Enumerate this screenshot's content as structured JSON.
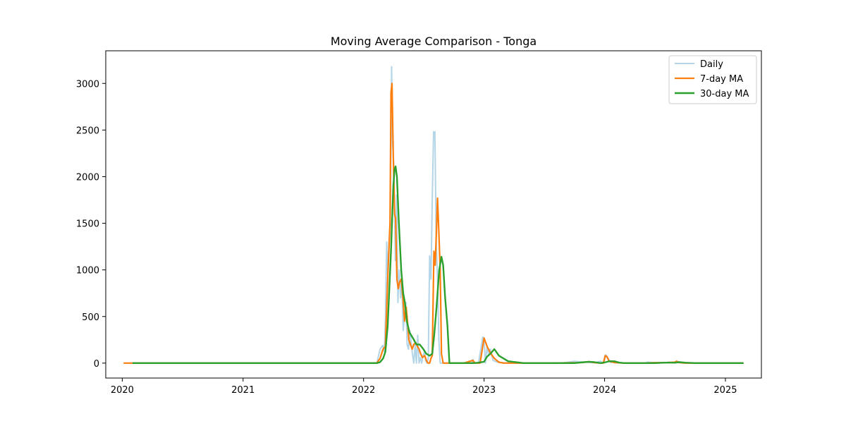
{
  "chart_data": {
    "type": "line",
    "title": "Moving Average Comparison - Tonga",
    "xlabel": "",
    "ylabel": "",
    "xlim": [
      "2019-11-12",
      "2025-04-20"
    ],
    "ylim": [
      -160,
      3350
    ],
    "x_ticks": [
      "2020",
      "2021",
      "2022",
      "2023",
      "2024",
      "2025"
    ],
    "y_ticks": [
      0,
      500,
      1000,
      1500,
      2000,
      2500,
      3000
    ],
    "grid": false,
    "legend": "top-right",
    "series": [
      {
        "name": "Daily",
        "color": "#a6cee3",
        "x": [
          "2020-01-05",
          "2021-12-20",
          "2022-02-10",
          "2022-02-20",
          "2022-02-28",
          "2022-03-05",
          "2022-03-08",
          "2022-03-12",
          "2022-03-15",
          "2022-03-20",
          "2022-03-23",
          "2022-03-27",
          "2022-03-30",
          "2022-04-03",
          "2022-04-07",
          "2022-04-11",
          "2022-04-15",
          "2022-04-19",
          "2022-04-23",
          "2022-04-27",
          "2022-05-01",
          "2022-05-05",
          "2022-05-09",
          "2022-05-13",
          "2022-05-17",
          "2022-05-21",
          "2022-05-25",
          "2022-05-29",
          "2022-06-02",
          "2022-06-06",
          "2022-06-10",
          "2022-06-14",
          "2022-06-18",
          "2022-06-22",
          "2022-06-26",
          "2022-06-30",
          "2022-07-04",
          "2022-07-08",
          "2022-07-12",
          "2022-07-16",
          "2022-07-20",
          "2022-07-24",
          "2022-07-28",
          "2022-08-01",
          "2022-08-05",
          "2022-08-09",
          "2022-08-13",
          "2022-08-17",
          "2022-08-21",
          "2022-08-25",
          "2022-08-29",
          "2022-09-02",
          "2022-09-08",
          "2022-09-14",
          "2022-09-20",
          "2022-09-30",
          "2022-10-10",
          "2022-11-15",
          "2022-11-25",
          "2022-11-28",
          "2022-12-01",
          "2022-12-15",
          "2022-12-28",
          "2023-01-01",
          "2023-01-05",
          "2023-01-10",
          "2023-01-15",
          "2023-01-20",
          "2023-01-28",
          "2023-02-10",
          "2023-03-01",
          "2023-04-01",
          "2023-06-01",
          "2023-08-01",
          "2023-09-01",
          "2023-10-01",
          "2023-11-01",
          "2023-12-01",
          "2023-12-20",
          "2023-12-25",
          "2023-12-30",
          "2024-01-05",
          "2024-01-10",
          "2024-01-20",
          "2024-01-30",
          "2024-02-15",
          "2024-03-01",
          "2024-05-01",
          "2024-05-10",
          "2024-06-01",
          "2024-07-01",
          "2024-07-15",
          "2024-08-01",
          "2024-08-05",
          "2024-09-01",
          "2024-10-01",
          "2025-01-01",
          "2025-02-25"
        ],
        "values": [
          0,
          0,
          0,
          150,
          190,
          120,
          450,
          1300,
          950,
          1380,
          1500,
          3180,
          2350,
          2100,
          1100,
          1800,
          650,
          1000,
          700,
          900,
          350,
          500,
          650,
          200,
          150,
          350,
          220,
          100,
          0,
          200,
          0,
          300,
          0,
          60,
          0,
          80,
          120,
          30,
          0,
          50,
          1150,
          900,
          1750,
          2480,
          2480,
          1300,
          900,
          250,
          0,
          0,
          0,
          0,
          0,
          0,
          0,
          0,
          0,
          0,
          0,
          40,
          0,
          0,
          280,
          250,
          0,
          180,
          80,
          150,
          30,
          10,
          5,
          0,
          0,
          0,
          5,
          20,
          10,
          5,
          20,
          5,
          0,
          90,
          60,
          5,
          20,
          5,
          0,
          0,
          10,
          5,
          5,
          10,
          0,
          20,
          0,
          0,
          0,
          0
        ]
      },
      {
        "name": "7-day MA",
        "color": "#ff7f0e",
        "x": [
          "2020-01-05",
          "2020-02-01",
          "2022-02-10",
          "2022-02-20",
          "2022-03-01",
          "2022-03-08",
          "2022-03-15",
          "2022-03-22",
          "2022-03-25",
          "2022-03-28",
          "2022-04-01",
          "2022-04-05",
          "2022-04-08",
          "2022-04-12",
          "2022-04-16",
          "2022-04-20",
          "2022-04-25",
          "2022-04-30",
          "2022-05-05",
          "2022-05-10",
          "2022-05-14",
          "2022-05-18",
          "2022-05-23",
          "2022-05-28",
          "2022-06-02",
          "2022-06-08",
          "2022-06-13",
          "2022-06-18",
          "2022-06-23",
          "2022-06-28",
          "2022-07-05",
          "2022-07-10",
          "2022-07-15",
          "2022-07-20",
          "2022-07-24",
          "2022-07-28",
          "2022-08-02",
          "2022-08-06",
          "2022-08-10",
          "2022-08-13",
          "2022-08-17",
          "2022-08-21",
          "2022-08-25",
          "2022-08-30",
          "2022-09-05",
          "2022-09-10",
          "2022-09-20",
          "2022-10-10",
          "2022-11-01",
          "2022-11-28",
          "2022-12-05",
          "2022-12-20",
          "2023-01-01",
          "2023-01-10",
          "2023-01-20",
          "2023-02-01",
          "2023-02-15",
          "2023-03-01",
          "2023-05-01",
          "2023-08-01",
          "2023-10-15",
          "2023-11-01",
          "2023-11-15",
          "2023-12-01",
          "2023-12-20",
          "2023-12-28",
          "2024-01-03",
          "2024-01-08",
          "2024-01-15",
          "2024-02-01",
          "2024-03-01",
          "2024-05-01",
          "2024-06-01",
          "2024-07-01",
          "2024-08-01",
          "2024-08-06",
          "2024-08-15",
          "2024-09-01",
          "2025-02-25"
        ],
        "values": [
          0,
          0,
          0,
          50,
          150,
          180,
          900,
          1500,
          2900,
          3000,
          2200,
          1600,
          1550,
          900,
          800,
          870,
          900,
          700,
          450,
          600,
          450,
          250,
          200,
          150,
          200,
          220,
          180,
          150,
          100,
          60,
          80,
          30,
          0,
          0,
          50,
          80,
          1200,
          1050,
          1450,
          1770,
          1400,
          1000,
          100,
          0,
          0,
          0,
          0,
          0,
          0,
          30,
          0,
          0,
          270,
          180,
          110,
          50,
          10,
          0,
          0,
          0,
          5,
          10,
          15,
          5,
          0,
          0,
          80,
          70,
          20,
          5,
          0,
          0,
          5,
          5,
          10,
          20,
          5,
          0,
          0
        ]
      },
      {
        "name": "30-day MA",
        "color": "#2ca02c",
        "x": [
          "2020-02-01",
          "2022-02-10",
          "2022-02-20",
          "2022-03-01",
          "2022-03-08",
          "2022-03-15",
          "2022-03-25",
          "2022-04-01",
          "2022-04-05",
          "2022-04-08",
          "2022-04-12",
          "2022-04-18",
          "2022-04-25",
          "2022-05-01",
          "2022-05-06",
          "2022-05-12",
          "2022-05-20",
          "2022-06-01",
          "2022-06-10",
          "2022-06-20",
          "2022-07-01",
          "2022-07-10",
          "2022-07-20",
          "2022-07-28",
          "2022-08-03",
          "2022-08-10",
          "2022-08-18",
          "2022-08-25",
          "2022-08-30",
          "2022-09-05",
          "2022-09-12",
          "2022-09-18",
          "2022-09-25",
          "2022-10-01",
          "2022-10-15",
          "2022-11-01",
          "2022-12-01",
          "2022-12-15",
          "2023-01-01",
          "2023-01-10",
          "2023-01-20",
          "2023-02-01",
          "2023-02-15",
          "2023-03-15",
          "2023-05-01",
          "2023-08-01",
          "2023-10-01",
          "2023-11-01",
          "2023-11-15",
          "2023-12-01",
          "2023-12-20",
          "2024-01-05",
          "2024-01-15",
          "2024-01-30",
          "2024-02-15",
          "2024-03-01",
          "2024-05-01",
          "2024-06-01",
          "2024-07-01",
          "2024-08-01",
          "2024-08-15",
          "2024-09-01",
          "2024-10-01",
          "2025-02-25"
        ],
        "values": [
          0,
          0,
          10,
          50,
          120,
          400,
          1200,
          1900,
          2080,
          2110,
          2000,
          1500,
          1000,
          750,
          650,
          450,
          330,
          260,
          200,
          200,
          150,
          100,
          80,
          100,
          300,
          600,
          1000,
          1140,
          1050,
          700,
          400,
          0,
          0,
          0,
          0,
          0,
          0,
          5,
          15,
          70,
          100,
          150,
          80,
          20,
          0,
          0,
          0,
          10,
          15,
          10,
          0,
          10,
          20,
          20,
          5,
          0,
          0,
          0,
          5,
          5,
          10,
          5,
          0,
          0
        ]
      }
    ]
  }
}
